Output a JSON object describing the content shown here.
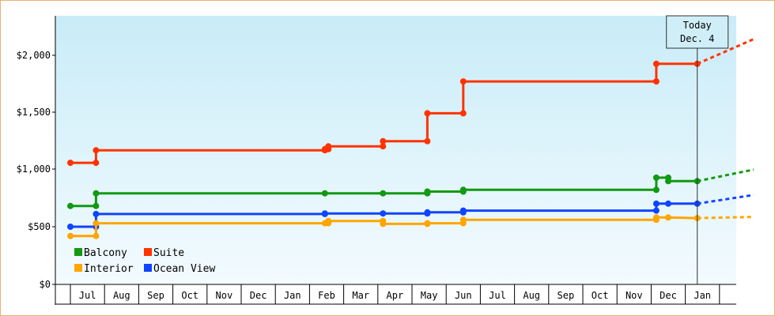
{
  "chart_data": {
    "type": "line",
    "title": "",
    "xlabel": "",
    "ylabel": "",
    "ylim": [
      0,
      2300
    ],
    "y_ticks": [
      0,
      500,
      1000,
      1500,
      2000
    ],
    "y_tick_labels": [
      "$0",
      "$500",
      "$1,000",
      "$1,500",
      "$2,000"
    ],
    "x_month_labels": [
      "Jul",
      "Aug",
      "Sep",
      "Oct",
      "Nov",
      "Dec",
      "Jan",
      "Feb",
      "Mar",
      "Apr",
      "May",
      "Jun",
      "Jul",
      "Aug",
      "Sep",
      "Oct",
      "Nov",
      "Dec",
      "Jan"
    ],
    "today": {
      "line1": "Today",
      "line2": "Dec. 4",
      "x": 17.85
    },
    "x_domain": [
      -0.5,
      19.5
    ],
    "legend": [
      {
        "name": "Balcony",
        "color": "#119911"
      },
      {
        "name": "Suite",
        "color": "#ff3300"
      },
      {
        "name": "Interior",
        "color": "#ffa500"
      },
      {
        "name": "Ocean View",
        "color": "#1144ff"
      }
    ],
    "series": [
      {
        "name": "Suite",
        "color": "#ff3300",
        "points": [
          [
            -0.5,
            1055
          ],
          [
            0.25,
            1055
          ],
          [
            0.25,
            1165
          ],
          [
            6.95,
            1165
          ],
          [
            6.95,
            1175
          ],
          [
            7.05,
            1175
          ],
          [
            7.05,
            1200
          ],
          [
            8.65,
            1200
          ],
          [
            8.65,
            1245
          ],
          [
            9.95,
            1245
          ],
          [
            9.95,
            1490
          ],
          [
            11.0,
            1490
          ],
          [
            11.0,
            1770
          ],
          [
            16.65,
            1770
          ],
          [
            16.65,
            1925
          ],
          [
            17.85,
            1925
          ]
        ],
        "projection": [
          [
            17.85,
            1925
          ],
          [
            19.5,
            2140
          ]
        ]
      },
      {
        "name": "Balcony",
        "color": "#119911",
        "points": [
          [
            -0.5,
            680
          ],
          [
            0.25,
            680
          ],
          [
            0.25,
            790
          ],
          [
            6.95,
            790
          ],
          [
            8.65,
            790
          ],
          [
            9.95,
            790
          ],
          [
            9.95,
            805
          ],
          [
            11.0,
            805
          ],
          [
            11.0,
            820
          ],
          [
            16.65,
            820
          ],
          [
            16.65,
            925
          ],
          [
            17.0,
            925
          ],
          [
            17.0,
            895
          ],
          [
            17.85,
            895
          ]
        ],
        "projection": [
          [
            17.85,
            895
          ],
          [
            19.5,
            995
          ]
        ]
      },
      {
        "name": "Ocean View",
        "color": "#1144ff",
        "points": [
          [
            -0.5,
            500
          ],
          [
            0.25,
            500
          ],
          [
            0.25,
            610
          ],
          [
            6.95,
            610
          ],
          [
            6.95,
            615
          ],
          [
            8.65,
            615
          ],
          [
            9.95,
            615
          ],
          [
            9.95,
            625
          ],
          [
            11.0,
            625
          ],
          [
            11.0,
            640
          ],
          [
            16.65,
            640
          ],
          [
            16.65,
            700
          ],
          [
            17.0,
            700
          ],
          [
            17.85,
            700
          ]
        ],
        "projection": [
          [
            17.85,
            700
          ],
          [
            19.5,
            775
          ]
        ]
      },
      {
        "name": "Interior",
        "color": "#ffa500",
        "points": [
          [
            -0.5,
            420
          ],
          [
            0.25,
            420
          ],
          [
            0.25,
            530
          ],
          [
            6.95,
            530
          ],
          [
            7.05,
            530
          ],
          [
            7.05,
            550
          ],
          [
            8.65,
            550
          ],
          [
            8.65,
            525
          ],
          [
            9.95,
            525
          ],
          [
            9.95,
            530
          ],
          [
            11.0,
            530
          ],
          [
            11.0,
            560
          ],
          [
            16.65,
            560
          ],
          [
            16.65,
            580
          ],
          [
            17.0,
            580
          ],
          [
            17.85,
            575
          ]
        ],
        "projection": [
          [
            17.85,
            575
          ],
          [
            19.5,
            585
          ]
        ]
      }
    ]
  }
}
